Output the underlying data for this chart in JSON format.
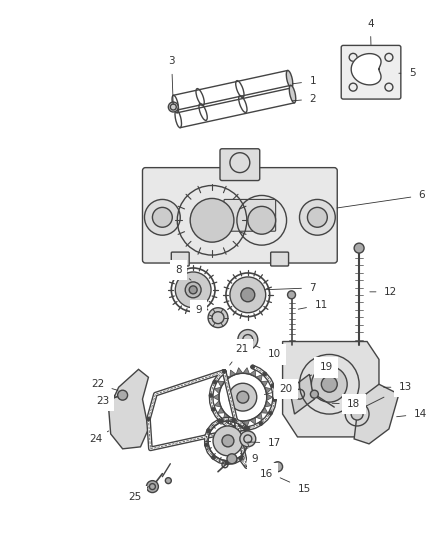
{
  "background_color": "#ffffff",
  "fig_width": 4.38,
  "fig_height": 5.33,
  "dpi": 100,
  "line_color": "#444444",
  "label_color": "#333333",
  "label_fontsize": 7.5,
  "lw": 1.0
}
